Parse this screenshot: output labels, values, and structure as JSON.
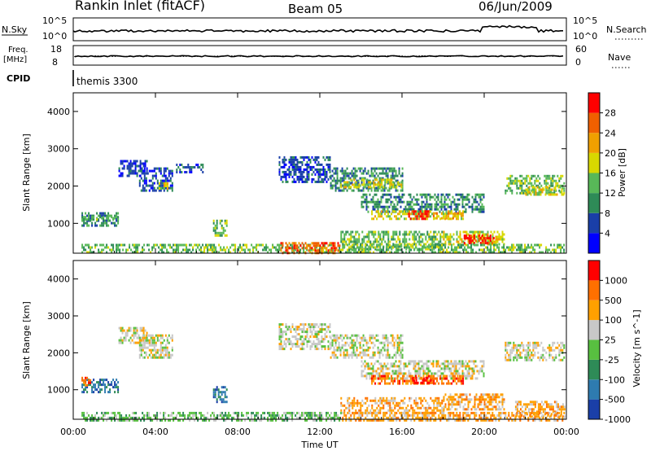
{
  "header": {
    "title": "Rankin Inlet (fitACF)",
    "beam": "Beam 05",
    "date": "06/Jun/2009"
  },
  "strip_panels": {
    "nsky": {
      "label": "N.Sky",
      "tick_top": "10^5",
      "tick_bottom": "10^0",
      "right_label": "N.Search",
      "right_tick_top": "10^5",
      "right_tick_bottom": "10^0"
    },
    "freq": {
      "label_line1": "Freq.",
      "label_line2": "[MHz]",
      "tick_top": "18",
      "tick_bottom": "8",
      "right_label": "Nave",
      "right_tick_top": "60",
      "right_tick_bottom": "0"
    },
    "cpid": {
      "label": "CPID",
      "value": "themis 3300"
    }
  },
  "colors": {
    "power": [
      "#0000ff",
      "#1a3fa8",
      "#2e8b57",
      "#58b858",
      "#d8d800",
      "#f0a000",
      "#f06000",
      "#ff0000"
    ],
    "velocity": [
      "#1a3fa8",
      "#2e7bb0",
      "#2e8b57",
      "#58c040",
      "#c8c8c8",
      "#ffa000",
      "#ff7000",
      "#ff0000"
    ]
  },
  "chart_data": [
    {
      "type": "heatmap",
      "name": "power",
      "ylabel": "Slant Range [km]",
      "yticks": [
        "1000",
        "2000",
        "3000",
        "4000"
      ],
      "ylim": [
        200,
        4500
      ],
      "xlim": [
        0,
        24
      ],
      "xticks": [
        "00:00",
        "04:00",
        "08:00",
        "12:00",
        "16:00",
        "20:00",
        "00:00"
      ],
      "colorbar_label": "Power [dB]",
      "colorbar_ticks": [
        "4",
        "8",
        "12",
        "16",
        "20",
        "24",
        "28"
      ],
      "regions": [
        {
          "t0": 0.4,
          "t1": 2.2,
          "r0": 950,
          "r1": 1300,
          "level": 2
        },
        {
          "t0": 0.4,
          "t1": 2.2,
          "r0": 1100,
          "r1": 1200,
          "level": 3
        },
        {
          "t0": 2.2,
          "t1": 3.6,
          "r0": 2300,
          "r1": 2700,
          "level": 1
        },
        {
          "t0": 3.2,
          "t1": 4.8,
          "r0": 1900,
          "r1": 2500,
          "level": 1
        },
        {
          "t0": 4.0,
          "t1": 4.6,
          "r0": 1950,
          "r1": 2100,
          "level": 4
        },
        {
          "t0": 5.0,
          "t1": 6.3,
          "r0": 2400,
          "r1": 2600,
          "level": 1
        },
        {
          "t0": 6.8,
          "t1": 7.5,
          "r0": 700,
          "r1": 1100,
          "level": 3
        },
        {
          "t0": 10.0,
          "t1": 12.5,
          "r0": 2100,
          "r1": 2800,
          "level": 1
        },
        {
          "t0": 12.5,
          "t1": 16.0,
          "r0": 1900,
          "r1": 2500,
          "level": 2
        },
        {
          "t0": 13.0,
          "t1": 16.0,
          "r0": 2000,
          "r1": 2200,
          "level": 4
        },
        {
          "t0": 14.0,
          "t1": 20.0,
          "r0": 1300,
          "r1": 1800,
          "level": 2
        },
        {
          "t0": 14.5,
          "t1": 19.0,
          "r0": 1150,
          "r1": 1350,
          "level": 4
        },
        {
          "t0": 16.3,
          "t1": 17.3,
          "r0": 1150,
          "r1": 1350,
          "level": 7
        },
        {
          "t0": 17.5,
          "t1": 19.0,
          "r0": 1150,
          "r1": 1300,
          "level": 5
        },
        {
          "t0": 13.0,
          "t1": 18.0,
          "r0": 300,
          "r1": 800,
          "level": 3
        },
        {
          "t0": 18.0,
          "t1": 21.0,
          "r0": 450,
          "r1": 800,
          "level": 4
        },
        {
          "t0": 19.0,
          "t1": 20.5,
          "r0": 500,
          "r1": 700,
          "level": 7
        },
        {
          "t0": 21.0,
          "t1": 23.9,
          "r0": 1800,
          "r1": 2300,
          "level": 3
        },
        {
          "t0": 22.0,
          "t1": 23.9,
          "r0": 1800,
          "r1": 2000,
          "level": 4
        },
        {
          "t0": 0.4,
          "t1": 23.9,
          "r0": 200,
          "r1": 450,
          "level": 3
        },
        {
          "t0": 10.0,
          "t1": 13.0,
          "r0": 200,
          "r1": 500,
          "level": 6
        }
      ]
    },
    {
      "type": "heatmap",
      "name": "velocity",
      "ylabel": "Slant Range [km]",
      "yticks": [
        "1000",
        "2000",
        "3000",
        "4000"
      ],
      "ylim": [
        200,
        4500
      ],
      "xlim": [
        0,
        24
      ],
      "xticks": [
        "00:00",
        "04:00",
        "08:00",
        "12:00",
        "16:00",
        "20:00",
        "00:00"
      ],
      "xlabel": "Time UT",
      "colorbar_label": "Velocity [m s^-1]",
      "colorbar_ticks": [
        "1000",
        "500",
        "100",
        "25",
        "-25",
        "-100",
        "-500",
        "-1000"
      ],
      "regions": [
        {
          "t0": 0.4,
          "t1": 2.2,
          "r0": 950,
          "r1": 1300,
          "level": 1
        },
        {
          "t0": 0.4,
          "t1": 0.8,
          "r0": 1100,
          "r1": 1350,
          "level": 6
        },
        {
          "t0": 2.2,
          "t1": 3.6,
          "r0": 2300,
          "r1": 2700,
          "level": 4
        },
        {
          "t0": 3.2,
          "t1": 4.8,
          "r0": 1900,
          "r1": 2500,
          "level": 4
        },
        {
          "t0": 6.8,
          "t1": 7.5,
          "r0": 700,
          "r1": 1100,
          "level": 1
        },
        {
          "t0": 10.0,
          "t1": 12.5,
          "r0": 2100,
          "r1": 2800,
          "level": 4
        },
        {
          "t0": 12.5,
          "t1": 16.0,
          "r0": 1900,
          "r1": 2500,
          "level": 4
        },
        {
          "t0": 14.0,
          "t1": 20.0,
          "r0": 1300,
          "r1": 1800,
          "level": 4
        },
        {
          "t0": 14.5,
          "t1": 19.0,
          "r0": 1150,
          "r1": 1400,
          "level": 6
        },
        {
          "t0": 16.5,
          "t1": 17.5,
          "r0": 1200,
          "r1": 1350,
          "level": 7
        },
        {
          "t0": 13.0,
          "t1": 18.0,
          "r0": 400,
          "r1": 800,
          "level": 5
        },
        {
          "t0": 18.0,
          "t1": 21.0,
          "r0": 450,
          "r1": 900,
          "level": 5
        },
        {
          "t0": 21.0,
          "t1": 23.9,
          "r0": 1800,
          "r1": 2300,
          "level": 4
        },
        {
          "t0": 21.5,
          "t1": 23.9,
          "r0": 300,
          "r1": 700,
          "level": 5
        },
        {
          "t0": 0.4,
          "t1": 13.0,
          "r0": 200,
          "r1": 400,
          "level": 3
        },
        {
          "t0": 13.0,
          "t1": 23.9,
          "r0": 200,
          "r1": 400,
          "level": 5
        }
      ]
    }
  ]
}
